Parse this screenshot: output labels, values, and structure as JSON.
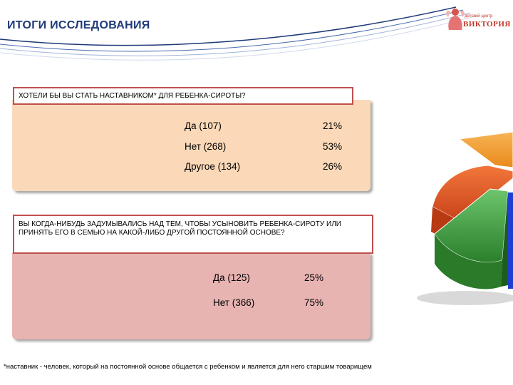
{
  "header": {
    "title": "ИТОГИ ИССЛЕДОВАНИЯ"
  },
  "logo": {
    "line1": "детский центр",
    "line2": "ВИКТОРИЯ"
  },
  "question1": {
    "text": "ХОТЕЛИ БЫ ВЫ СТАТЬ НАСТАВНИКОМ* ДЛЯ РЕБЕНКА-СИРОТЫ?",
    "answers": [
      {
        "label": "Да (107)",
        "percent": "21%"
      },
      {
        "label": "Нет (268)",
        "percent": "53%"
      },
      {
        "label": "Другое (134)",
        "percent": "26%"
      }
    ]
  },
  "question2": {
    "text": "ВЫ КОГДА-НИБУДЬ ЗАДУМЫВАЛИСЬ НАД ТЕМ, ЧТОБЫ УСЫНОВИТЬ РЕБЕНКА-СИРОТУ ИЛИ ПРИНЯТЬ ЕГО В СЕМЬЮ НА КАКОЙ-ЛИБО ДРУГОЙ ПОСТОЯННОЙ ОСНОВЕ?",
    "answers": [
      {
        "label": "Да (125)",
        "percent": "25%"
      },
      {
        "label": "Нет (366)",
        "percent": "75%"
      }
    ]
  },
  "footnote": "*наставник - человек, который на постоянной основе общается с ребенком и является для него старшим товарищем",
  "colors": {
    "title": "#1f3a78",
    "panel1": "#fbd9b8",
    "panel2": "#e8b4b2",
    "question_border": "#c0504d",
    "pie_orange_light": "#f5a23d",
    "pie_orange": "#ee6a1f",
    "pie_green": "#3fa63f",
    "pie_blue": "#1f3fcf"
  }
}
